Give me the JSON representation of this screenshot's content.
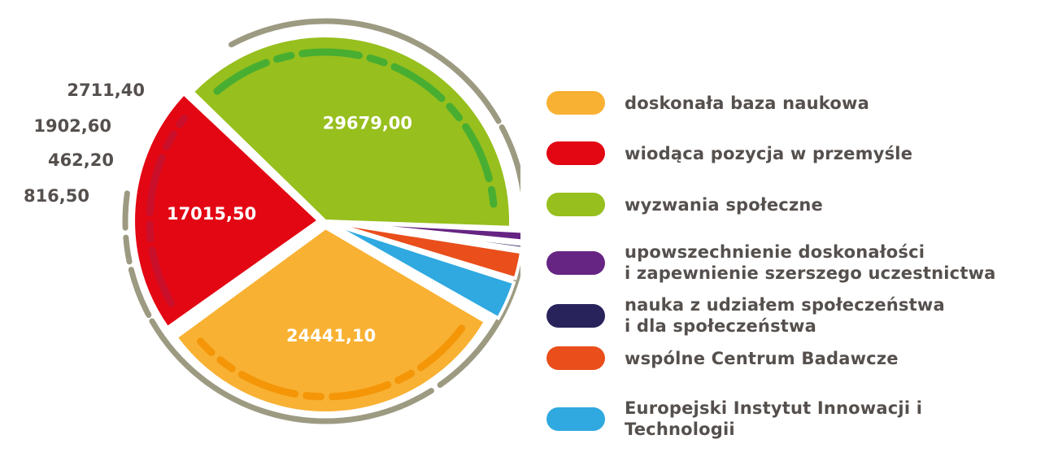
{
  "chart_data": {
    "type": "pie",
    "categories": [
      "doskonała baza naukowa",
      "wiodąca pozycja w przemyśle",
      "wyzwania społeczne",
      "upowszechnienie doskonałości\ni zapewnienie szerszego uczestnictwa",
      "nauka z udziałem społeczeństwa\ni dla społeczeństwa",
      "wspólne Centrum Badawcze",
      "Europejski Instytut Innowacji i Technologii"
    ],
    "values": [
      24441.1,
      17015.5,
      29679.0,
      816.5,
      462.2,
      1902.6,
      2711.4
    ],
    "labels": [
      "24441,10",
      "17015,50",
      "29679,00",
      "816,50",
      "462,20",
      "1902,60",
      "2711,40"
    ],
    "colors": [
      "#f8b133",
      "#e30613",
      "#97bf1d",
      "#662483",
      "#29235c",
      "#e94e1b",
      "#2fa9e0"
    ],
    "legend_position": "right"
  }
}
